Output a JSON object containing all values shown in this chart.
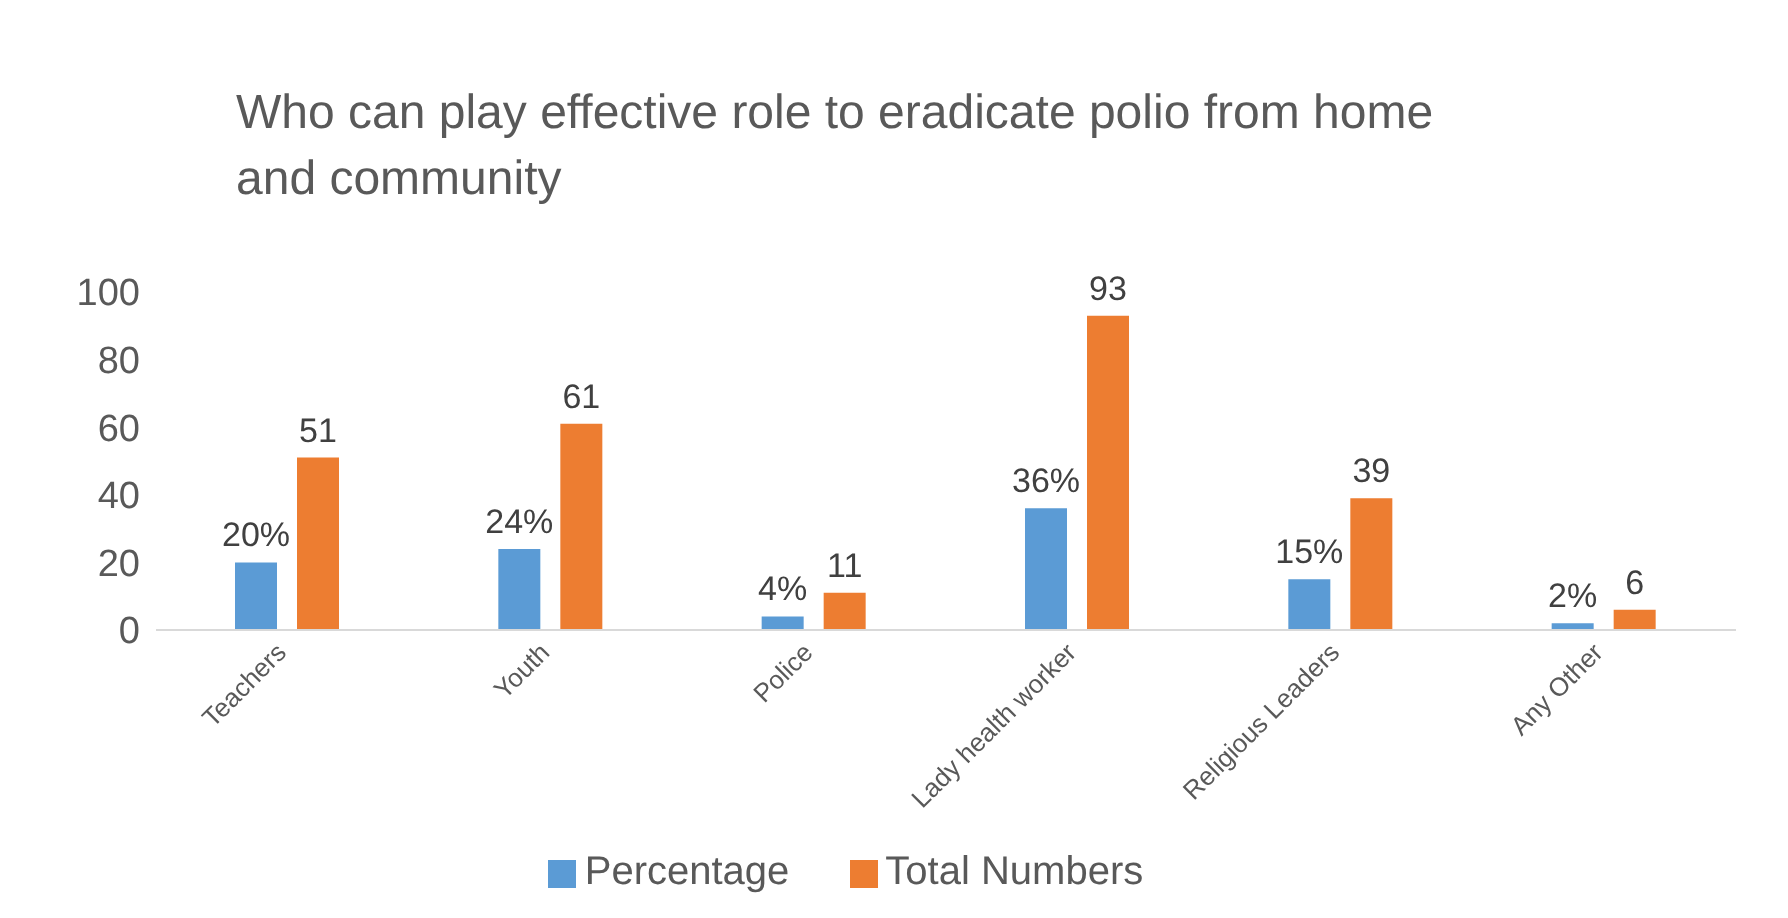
{
  "chart_data": {
    "type": "bar",
    "title": "Who can play effective role to eradicate polio from home and community",
    "categories": [
      "Teachers",
      "Youth",
      "Police",
      "Lady health worker",
      "Religious Leaders",
      "Any Other"
    ],
    "series": [
      {
        "name": "Percentage",
        "color": "#5b9bd5",
        "values": [
          20,
          24,
          4,
          36,
          15,
          2
        ],
        "value_labels": [
          "20%",
          "24%",
          "4%",
          "36%",
          "15%",
          "2%"
        ]
      },
      {
        "name": "Total Numbers",
        "color": "#ed7d31",
        "values": [
          51,
          61,
          11,
          93,
          39,
          6
        ],
        "value_labels": [
          "51",
          "61",
          "11",
          "93",
          "39",
          "6"
        ]
      }
    ],
    "ylim": [
      0,
      100
    ],
    "yticks": [
      0,
      20,
      40,
      60,
      80,
      100
    ],
    "grid": false,
    "legend": "bottom"
  }
}
